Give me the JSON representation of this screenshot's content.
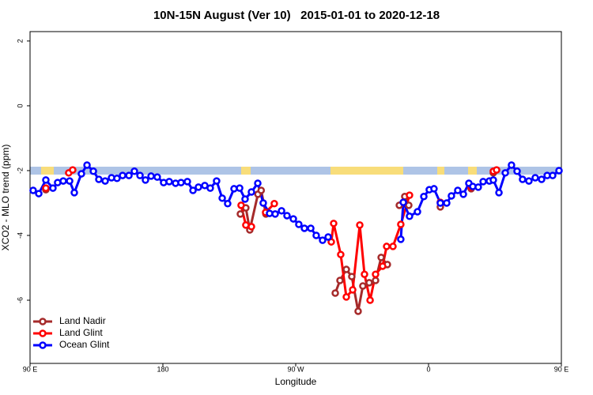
{
  "chart_data": {
    "type": "line",
    "title": "10N-15N August (Ver 10)   2015-01-01 to 2020-12-18",
    "xlabel": "Longitude",
    "ylabel": "XCO2 - MLO trend (ppm)",
    "xlim": [
      90,
      450
    ],
    "xticks": [
      {
        "value": 90,
        "label": "90 E"
      },
      {
        "value": 180,
        "label": "180"
      },
      {
        "value": 270,
        "label": "90 W"
      },
      {
        "value": 360,
        "label": "0"
      },
      {
        "value": 450,
        "label": "90 E"
      }
    ],
    "ylim": [
      -7.95,
      2.29
    ],
    "yticks": [
      -6,
      -4,
      -2,
      0,
      2
    ],
    "legend": "bottom-left",
    "series": [
      {
        "name": "Land Nadir",
        "color": "#a52a2a",
        "x": [
          100.7,
          null,
          232.5,
          236.2,
          238.9,
          244.4,
          246.6,
          249.8,
          null,
          296.8,
          300.0,
          304.3,
          308.0,
          312.3,
          315.5,
          319.8,
          324.1,
          327.9,
          332.1,
          null,
          340.2,
          343.9,
          346.6,
          null,
          368.0,
          null,
          388.9,
          null,
          403.9
        ],
        "values": [
          -2.59,
          null,
          -3.34,
          -3.15,
          -3.83,
          -2.73,
          -2.61,
          -3.34,
          null,
          -5.78,
          -5.39,
          -5.05,
          -5.27,
          -6.34,
          -5.56,
          -5.46,
          -5.39,
          -4.68,
          -4.9,
          null,
          -3.07,
          -2.8,
          -3.07,
          null,
          -3.12,
          null,
          -2.56,
          null,
          -2.07
        ]
      },
      {
        "name": "Land Glint",
        "color": "#ff0000",
        "x": [
          100.7,
          null,
          116.2,
          118.9,
          null,
          233.0,
          236.2,
          240.0,
          null,
          249.6,
          255.5,
          null,
          294.1,
          295.7,
          300.5,
          304.3,
          308.6,
          313.4,
          316.6,
          320.4,
          324.1,
          328.9,
          331.6,
          335.9,
          341.2,
          347.1,
          null,
          368.0,
          null,
          388.9,
          null,
          403.9,
          406.1
        ],
        "values": [
          -2.54,
          null,
          -2.07,
          -1.98,
          null,
          -3.07,
          -3.68,
          -3.73,
          null,
          -3.29,
          -3.02,
          null,
          -4.2,
          -3.63,
          -4.59,
          -5.9,
          -5.68,
          -3.68,
          -5.2,
          -6.0,
          -5.2,
          -4.95,
          -4.34,
          -4.34,
          -3.66,
          -2.76,
          null,
          -2.98,
          null,
          -2.51,
          null,
          -2.02,
          -1.98
        ]
      },
      {
        "name": "Ocean Glint",
        "color": "#0000ff",
        "x": [
          92.1,
          95.9,
          100.7,
          105.5,
          108.7,
          112.5,
          116.8,
          120.0,
          124.8,
          128.6,
          132.9,
          136.6,
          140.9,
          145.2,
          148.9,
          152.7,
          157.0,
          160.7,
          164.5,
          168.2,
          172.0,
          176.2,
          180.5,
          184.3,
          188.6,
          192.3,
          196.6,
          200.4,
          204.1,
          208.4,
          212.1,
          216.4,
          220.2,
          223.9,
          228.2,
          232.0,
          235.7,
          240.0,
          244.3,
          248.0,
          252.3,
          256.1,
          260.4,
          264.1,
          268.4,
          272.1,
          275.9,
          280.2,
          283.9,
          288.2,
          292.0,
          null,
          341.2,
          342.9,
          347.1,
          352.5,
          356.8,
          360.5,
          363.7,
          368.0,
          372.3,
          375.5,
          379.8,
          383.6,
          387.3,
          390.0,
          393.7,
          397.0,
          401.2,
          403.9,
          407.7,
          412.0,
          416.2,
          420.0,
          423.7,
          428.0,
          432.3,
          436.6,
          440.4,
          444.1,
          448.4
        ],
        "values": [
          -2.61,
          -2.71,
          -2.29,
          -2.54,
          -2.37,
          -2.32,
          -2.32,
          -2.68,
          -2.1,
          -1.83,
          -2.02,
          -2.27,
          -2.32,
          -2.22,
          -2.24,
          -2.15,
          -2.15,
          -2.02,
          -2.15,
          -2.29,
          -2.17,
          -2.2,
          -2.37,
          -2.34,
          -2.39,
          -2.37,
          -2.34,
          -2.61,
          -2.51,
          -2.46,
          -2.54,
          -2.32,
          -2.85,
          -3.02,
          -2.56,
          -2.54,
          -2.88,
          -2.66,
          -2.39,
          -3.0,
          -3.32,
          -3.34,
          -3.24,
          -3.39,
          -3.49,
          -3.66,
          -3.78,
          -3.78,
          -4.0,
          -4.15,
          -4.05,
          null,
          -4.12,
          -2.98,
          -3.41,
          -3.27,
          -2.8,
          -2.59,
          -2.56,
          -3.0,
          -3.0,
          -2.78,
          -2.61,
          -2.73,
          -2.39,
          -2.49,
          -2.51,
          -2.34,
          -2.32,
          -2.29,
          -2.68,
          -2.07,
          -1.83,
          -2.02,
          -2.27,
          -2.32,
          -2.22,
          -2.27,
          -2.15,
          -2.15,
          -2.0
        ]
      }
    ]
  }
}
